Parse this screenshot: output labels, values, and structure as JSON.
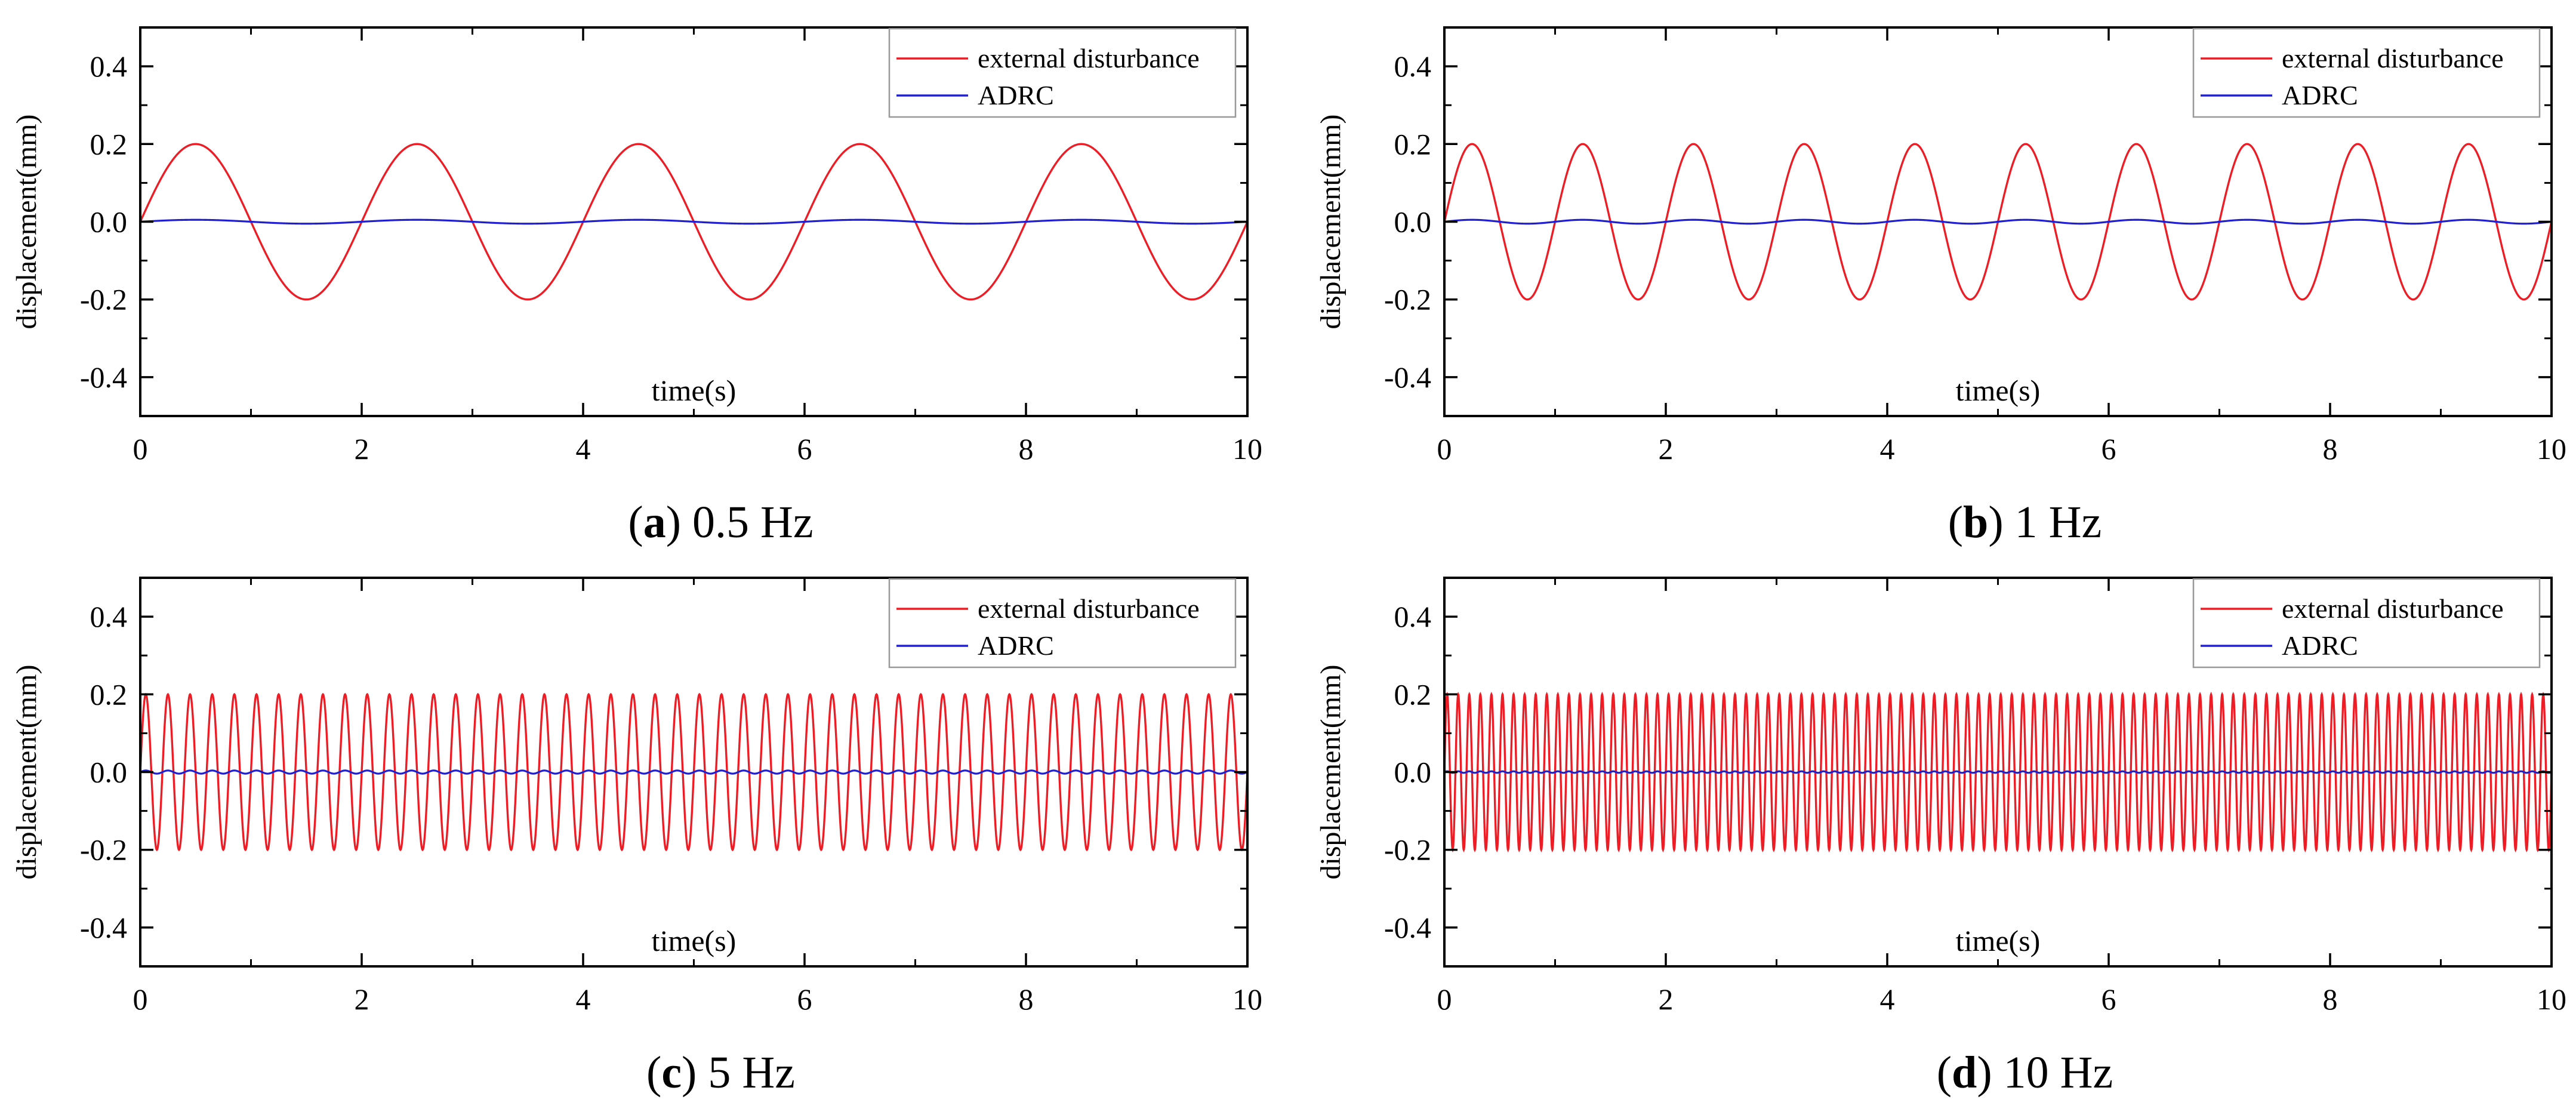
{
  "chart_data": [
    {
      "type": "line",
      "panel_letter": "a",
      "caption": "0.5 Hz",
      "frequency_hz": 0.5,
      "xlabel": "time(s)",
      "ylabel": "displacement(mm)",
      "xlim": [
        0,
        10
      ],
      "ylim": [
        -0.5,
        0.5
      ],
      "xticks": [
        0,
        2,
        4,
        6,
        8,
        10
      ],
      "yticks": [
        -0.4,
        -0.2,
        0.0,
        0.2,
        0.4
      ],
      "legend_position": "top-right",
      "series": [
        {
          "name": "external disturbance",
          "color": "#ee1c25",
          "function": "sine",
          "amplitude": 0.2,
          "frequency_hz": 0.5
        },
        {
          "name": "ADRC",
          "color": "#2020d0",
          "function": "sine",
          "amplitude": 0.005,
          "frequency_hz": 0.5
        }
      ]
    },
    {
      "type": "line",
      "panel_letter": "b",
      "caption": "1 Hz",
      "frequency_hz": 1,
      "xlabel": "time(s)",
      "ylabel": "displacement(mm)",
      "xlim": [
        0,
        10
      ],
      "ylim": [
        -0.5,
        0.5
      ],
      "xticks": [
        0,
        2,
        4,
        6,
        8,
        10
      ],
      "yticks": [
        -0.4,
        -0.2,
        0.0,
        0.2,
        0.4
      ],
      "legend_position": "top-right",
      "series": [
        {
          "name": "external disturbance",
          "color": "#ee1c25",
          "function": "sine",
          "amplitude": 0.2,
          "frequency_hz": 1
        },
        {
          "name": "ADRC",
          "color": "#2020d0",
          "function": "sine",
          "amplitude": 0.005,
          "frequency_hz": 1
        }
      ]
    },
    {
      "type": "line",
      "panel_letter": "c",
      "caption": "5 Hz",
      "frequency_hz": 5,
      "xlabel": "time(s)",
      "ylabel": "displacement(mm)",
      "xlim": [
        0,
        10
      ],
      "ylim": [
        -0.5,
        0.5
      ],
      "xticks": [
        0,
        2,
        4,
        6,
        8,
        10
      ],
      "yticks": [
        -0.4,
        -0.2,
        0.0,
        0.2,
        0.4
      ],
      "legend_position": "top-right",
      "series": [
        {
          "name": "external disturbance",
          "color": "#ee1c25",
          "function": "sine",
          "amplitude": 0.2,
          "frequency_hz": 5
        },
        {
          "name": "ADRC",
          "color": "#2020d0",
          "function": "sine",
          "amplitude": 0.004,
          "frequency_hz": 5
        }
      ]
    },
    {
      "type": "line",
      "panel_letter": "d",
      "caption": "10 Hz",
      "frequency_hz": 10,
      "xlabel": "time(s)",
      "ylabel": "displacement(mm)",
      "xlim": [
        0,
        10
      ],
      "ylim": [
        -0.5,
        0.5
      ],
      "xticks": [
        0,
        2,
        4,
        6,
        8,
        10
      ],
      "yticks": [
        -0.4,
        -0.2,
        0.0,
        0.2,
        0.4
      ],
      "legend_position": "top-right",
      "series": [
        {
          "name": "external disturbance",
          "color": "#ee1c25",
          "function": "sine",
          "amplitude": 0.2,
          "frequency_hz": 10
        },
        {
          "name": "ADRC",
          "color": "#2020d0",
          "function": "sine",
          "amplitude": 0.002,
          "frequency_hz": 10
        }
      ]
    }
  ]
}
